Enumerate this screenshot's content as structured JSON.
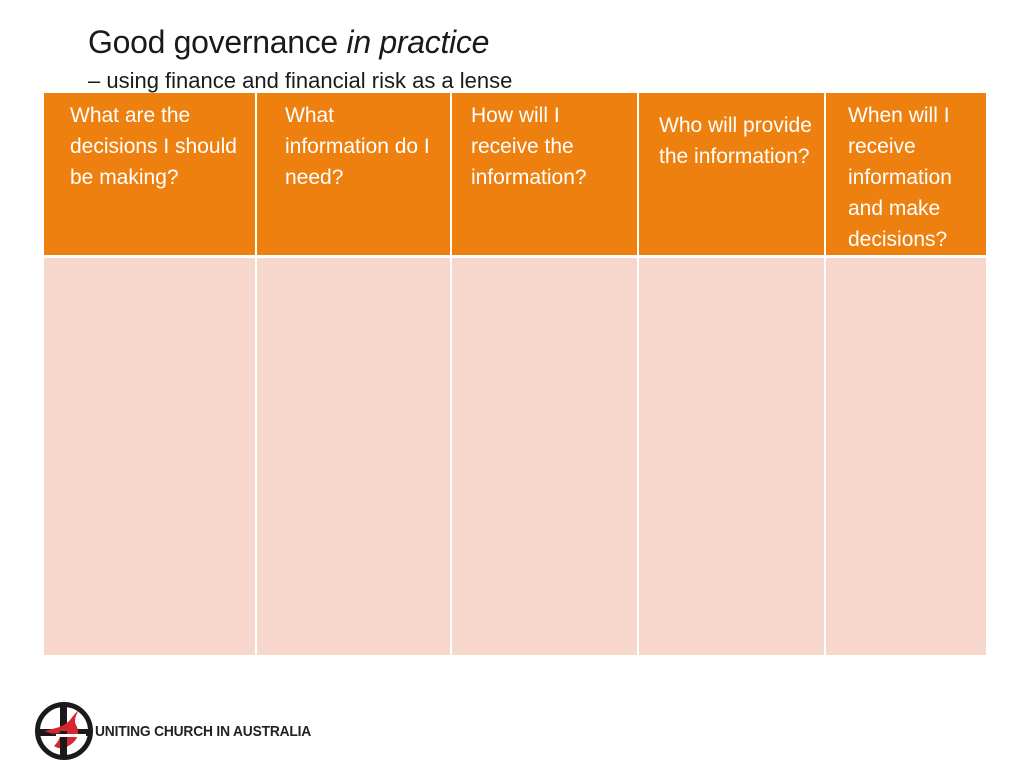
{
  "slide": {
    "title_main": "Good governance",
    "title_emphasis": "in practice",
    "subtitle": "– using finance and financial risk as a lense"
  },
  "table": {
    "headers": [
      "What are the decisions I should be making?",
      "What information do I need?",
      "How will I receive the information?",
      "Who will provide the information?",
      "When will I receive information and make decisions?"
    ],
    "rows": [
      [
        "",
        "",
        "",
        "",
        ""
      ]
    ]
  },
  "footer": {
    "organization": "UNITING CHURCH IN AUSTRALIA",
    "logo_icon": "uniting-church-dove-cross-logo"
  },
  "colors": {
    "header_fill": "#ee800f",
    "body_fill": "#f7d6cb",
    "logo_red": "#d7262f"
  }
}
